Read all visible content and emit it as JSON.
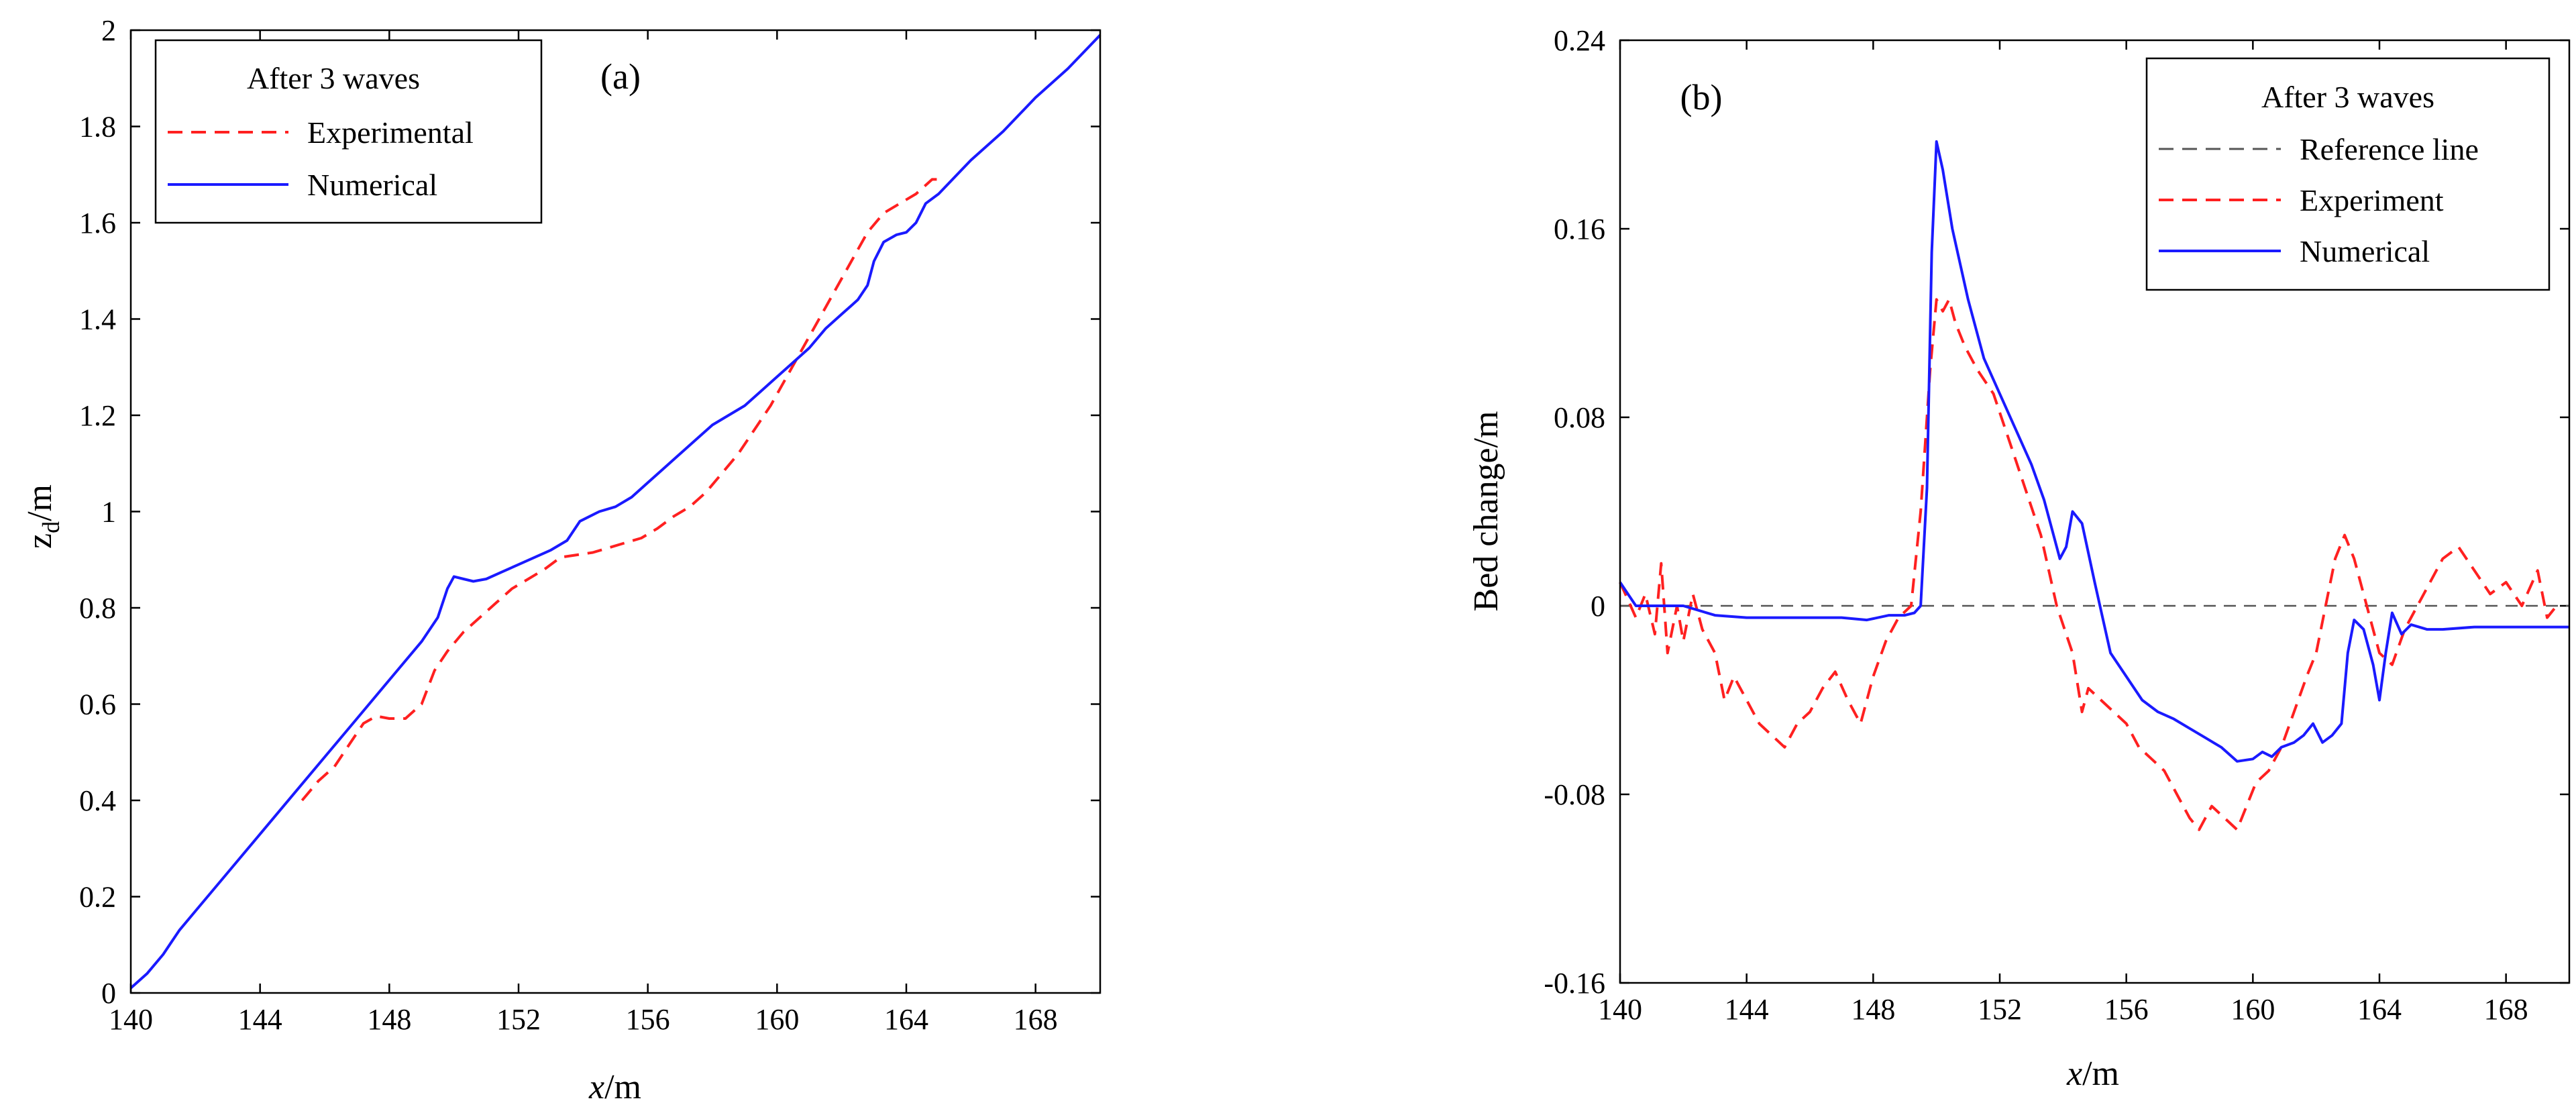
{
  "chart_data": [
    {
      "type": "line",
      "panel_label": "(a)",
      "xlabel_italic": "x",
      "xlabel_rest": "/m",
      "ylabel_main": "z",
      "ylabel_sub": "d",
      "ylabel_rest": "/m",
      "xlim": [
        140,
        170
      ],
      "ylim": [
        0,
        2
      ],
      "xticks": [
        "140",
        "144",
        "148",
        "152",
        "156",
        "160",
        "164",
        "168"
      ],
      "yticks": [
        "0",
        "0.2",
        "0.4",
        "0.6",
        "0.8",
        "1",
        "1.2",
        "1.4",
        "1.6",
        "1.8",
        "2"
      ],
      "legend_title": "After 3 waves",
      "legend_position": "top-left",
      "series": [
        {
          "name": "Experimental",
          "color": "#ff2020",
          "dash": "dashed",
          "x": [
            145.3,
            145.8,
            146.3,
            146.8,
            147.2,
            147.6,
            148.0,
            148.5,
            149.0,
            149.4,
            149.8,
            150.3,
            150.8,
            151.3,
            151.8,
            152.3,
            152.8,
            153.3,
            153.8,
            154.3,
            154.8,
            155.3,
            155.8,
            156.3,
            156.8,
            157.3,
            157.8,
            158.3,
            158.8,
            159.3,
            159.8,
            160.3,
            160.8,
            161.3,
            161.8,
            162.3,
            162.8,
            163.3,
            163.8,
            164.3,
            164.8,
            165.0
          ],
          "y": [
            0.4,
            0.44,
            0.47,
            0.52,
            0.56,
            0.575,
            0.57,
            0.57,
            0.6,
            0.67,
            0.71,
            0.75,
            0.78,
            0.81,
            0.84,
            0.86,
            0.88,
            0.905,
            0.91,
            0.915,
            0.925,
            0.935,
            0.945,
            0.965,
            0.99,
            1.01,
            1.04,
            1.08,
            1.12,
            1.17,
            1.22,
            1.28,
            1.34,
            1.4,
            1.46,
            1.52,
            1.58,
            1.62,
            1.64,
            1.66,
            1.69,
            1.69
          ]
        },
        {
          "name": "Numerical",
          "color": "#1a1aff",
          "dash": "solid",
          "x": [
            140.0,
            140.5,
            141.0,
            141.5,
            142.0,
            143.0,
            144.0,
            145.0,
            146.0,
            147.0,
            148.0,
            149.0,
            149.5,
            149.8,
            150.0,
            150.3,
            150.6,
            151.0,
            151.5,
            152.0,
            152.5,
            153.0,
            153.5,
            153.9,
            154.2,
            154.5,
            155.0,
            155.5,
            156.0,
            156.5,
            157.0,
            157.5,
            158.0,
            158.5,
            159.0,
            159.5,
            160.0,
            160.5,
            161.0,
            161.5,
            162.0,
            162.5,
            162.8,
            163.0,
            163.3,
            163.7,
            164.0,
            164.3,
            164.6,
            165.0,
            166.0,
            167.0,
            168.0,
            169.0,
            170.0
          ],
          "y": [
            0.01,
            0.04,
            0.08,
            0.13,
            0.17,
            0.25,
            0.33,
            0.41,
            0.49,
            0.57,
            0.65,
            0.73,
            0.78,
            0.84,
            0.865,
            0.86,
            0.855,
            0.86,
            0.875,
            0.89,
            0.905,
            0.92,
            0.94,
            0.98,
            0.99,
            1.0,
            1.01,
            1.03,
            1.06,
            1.09,
            1.12,
            1.15,
            1.18,
            1.2,
            1.22,
            1.25,
            1.28,
            1.31,
            1.34,
            1.38,
            1.41,
            1.44,
            1.47,
            1.52,
            1.56,
            1.575,
            1.58,
            1.6,
            1.64,
            1.66,
            1.73,
            1.79,
            1.86,
            1.92,
            1.99
          ]
        }
      ]
    },
    {
      "type": "line",
      "panel_label": "(b)",
      "xlabel_italic": "x",
      "xlabel_rest": "/m",
      "ylabel": "Bed change/m",
      "xlim": [
        140,
        170
      ],
      "ylim": [
        -0.16,
        0.24
      ],
      "xticks": [
        "140",
        "144",
        "148",
        "152",
        "156",
        "160",
        "164",
        "168"
      ],
      "yticks": [
        "-0.16",
        "-0.08",
        "0",
        "0.08",
        "0.16",
        "0.24"
      ],
      "legend_title": "After 3 waves",
      "legend_position": "top-right",
      "series": [
        {
          "name": "Reference line",
          "color": "#555555",
          "dash": "dashed",
          "x": [
            140,
            170
          ],
          "y": [
            0,
            0
          ]
        },
        {
          "name": "Experiment",
          "color": "#ff2020",
          "dash": "dashed",
          "x": [
            140.0,
            140.5,
            140.8,
            141.1,
            141.3,
            141.5,
            141.8,
            142.0,
            142.3,
            142.6,
            143.0,
            143.3,
            143.6,
            144.0,
            144.4,
            144.8,
            145.2,
            145.6,
            146.0,
            146.4,
            146.8,
            147.2,
            147.6,
            148.0,
            148.4,
            148.8,
            149.2,
            149.5,
            149.8,
            150.0,
            150.2,
            150.4,
            150.6,
            150.9,
            151.3,
            151.8,
            152.3,
            152.8,
            153.3,
            153.8,
            154.3,
            154.6,
            154.8,
            155.2,
            155.6,
            156.0,
            156.4,
            156.8,
            157.2,
            157.6,
            158.0,
            158.3,
            158.7,
            159.1,
            159.5,
            159.8,
            160.1,
            160.5,
            160.9,
            161.3,
            161.7,
            162.0,
            162.3,
            162.6,
            162.9,
            163.2,
            163.6,
            164.0,
            164.4,
            164.8,
            165.2,
            165.6,
            166.0,
            166.5,
            167.0,
            167.5,
            168.0,
            168.5,
            169.0,
            169.3,
            169.6
          ],
          "y": [
            0.01,
            -0.005,
            0.005,
            -0.012,
            0.018,
            -0.02,
            0.0,
            -0.015,
            0.005,
            -0.01,
            -0.02,
            -0.04,
            -0.03,
            -0.04,
            -0.05,
            -0.055,
            -0.06,
            -0.05,
            -0.045,
            -0.035,
            -0.028,
            -0.04,
            -0.05,
            -0.03,
            -0.015,
            -0.005,
            0.0,
            0.04,
            0.1,
            0.13,
            0.125,
            0.13,
            0.12,
            0.11,
            0.1,
            0.09,
            0.07,
            0.05,
            0.03,
            0.0,
            -0.02,
            -0.045,
            -0.035,
            -0.04,
            -0.045,
            -0.05,
            -0.06,
            -0.065,
            -0.07,
            -0.08,
            -0.09,
            -0.095,
            -0.085,
            -0.09,
            -0.095,
            -0.085,
            -0.075,
            -0.07,
            -0.06,
            -0.045,
            -0.03,
            -0.02,
            0.0,
            0.02,
            0.03,
            0.02,
            0.0,
            -0.02,
            -0.025,
            -0.01,
            0.0,
            0.01,
            0.02,
            0.025,
            0.015,
            0.005,
            0.01,
            0.0,
            0.015,
            -0.005,
            0.0
          ]
        },
        {
          "name": "Numerical",
          "color": "#1a1aff",
          "dash": "solid",
          "x": [
            140.0,
            140.5,
            141.0,
            142.0,
            143.0,
            144.0,
            145.0,
            146.0,
            147.0,
            147.8,
            148.5,
            149.0,
            149.3,
            149.5,
            149.7,
            149.85,
            150.0,
            150.2,
            150.5,
            151.0,
            151.5,
            152.0,
            152.5,
            153.0,
            153.4,
            153.7,
            153.9,
            154.1,
            154.3,
            154.6,
            155.0,
            155.5,
            156.0,
            156.5,
            157.0,
            157.5,
            158.0,
            158.5,
            159.0,
            159.5,
            160.0,
            160.3,
            160.6,
            160.9,
            161.3,
            161.6,
            161.9,
            162.2,
            162.5,
            162.8,
            163.0,
            163.2,
            163.5,
            163.8,
            164.0,
            164.2,
            164.4,
            164.7,
            165.0,
            165.5,
            166.0,
            167.0,
            168.0,
            169.0,
            170.0
          ],
          "y": [
            0.01,
            0.0,
            0.0,
            0.0,
            -0.004,
            -0.005,
            -0.005,
            -0.005,
            -0.005,
            -0.006,
            -0.004,
            -0.004,
            -0.003,
            0.0,
            0.05,
            0.15,
            0.197,
            0.185,
            0.16,
            0.13,
            0.105,
            0.09,
            0.075,
            0.06,
            0.045,
            0.03,
            0.02,
            0.025,
            0.04,
            0.035,
            0.01,
            -0.02,
            -0.03,
            -0.04,
            -0.045,
            -0.048,
            -0.052,
            -0.056,
            -0.06,
            -0.066,
            -0.065,
            -0.062,
            -0.064,
            -0.06,
            -0.058,
            -0.055,
            -0.05,
            -0.058,
            -0.055,
            -0.05,
            -0.02,
            -0.006,
            -0.01,
            -0.025,
            -0.04,
            -0.02,
            -0.003,
            -0.012,
            -0.008,
            -0.01,
            -0.01,
            -0.009,
            -0.009,
            -0.009,
            -0.009
          ]
        }
      ]
    }
  ]
}
